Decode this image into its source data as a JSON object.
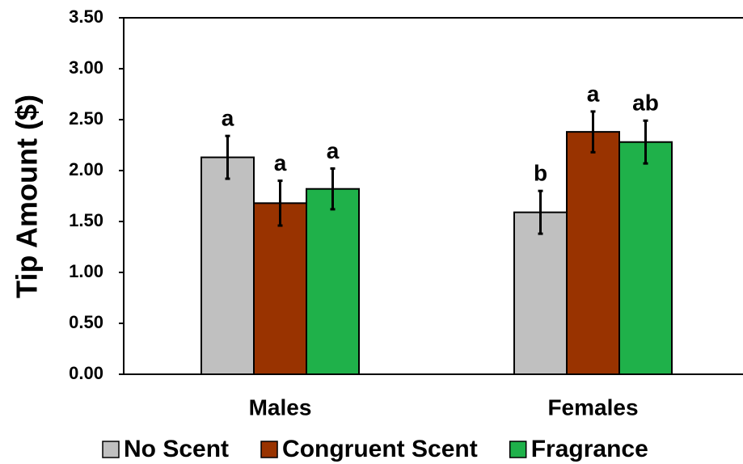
{
  "chart_data": {
    "type": "bar",
    "ylabel": "Tip Amount ($)",
    "categories": [
      "Males",
      "Females"
    ],
    "series": [
      {
        "name": "No Scent",
        "color": "#c0c0c0",
        "values": [
          2.13,
          1.59
        ],
        "errors": [
          0.21,
          0.21
        ],
        "letters": [
          "a",
          "b"
        ]
      },
      {
        "name": "Congruent Scent",
        "color": "#993300",
        "values": [
          1.68,
          2.38
        ],
        "errors": [
          0.22,
          0.2
        ],
        "letters": [
          "a",
          "a"
        ]
      },
      {
        "name": "Fragrance",
        "color": "#1fb14a",
        "values": [
          1.82,
          2.28
        ],
        "errors": [
          0.2,
          0.21
        ],
        "letters": [
          "a",
          "ab"
        ]
      }
    ],
    "ylim": [
      0,
      3.5
    ],
    "yticks": [
      {
        "value": 0,
        "label": "0.00"
      },
      {
        "value": 0.5,
        "label": "0.50"
      },
      {
        "value": 1,
        "label": "1.00"
      },
      {
        "value": 1.5,
        "label": "1.50"
      },
      {
        "value": 2,
        "label": "2.00"
      },
      {
        "value": 2.5,
        "label": "2.50"
      },
      {
        "value": 3,
        "label": "3.00"
      },
      {
        "value": 3.5,
        "label": "3.50"
      }
    ],
    "legend": "bottom"
  }
}
